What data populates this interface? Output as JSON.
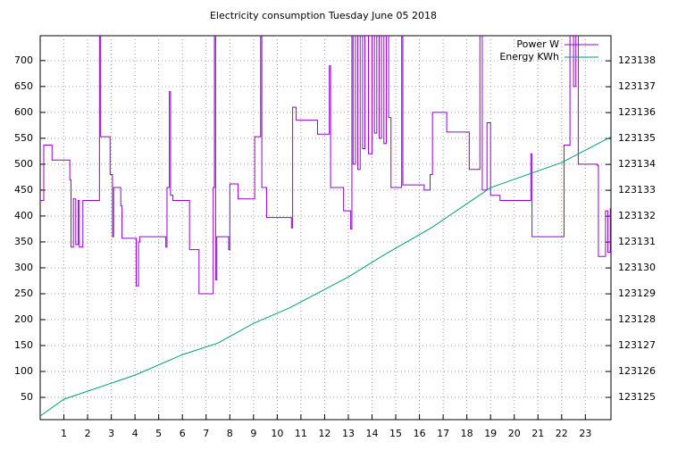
{
  "chart_data": {
    "type": "line",
    "title": "Electricity consumption Tuesday June 05 2018",
    "xlim": [
      0,
      24.08
    ],
    "xticks": [
      1,
      2,
      3,
      4,
      5,
      6,
      7,
      8,
      9,
      10,
      11,
      12,
      13,
      14,
      15,
      16,
      17,
      18,
      19,
      20,
      21,
      22,
      23
    ],
    "ylim": [
      7,
      748
    ],
    "yticks": [
      50,
      100,
      150,
      200,
      250,
      300,
      350,
      400,
      450,
      500,
      550,
      600,
      650,
      700
    ],
    "y2lim": [
      123124.14,
      123138.97
    ],
    "y2ticks": [
      123125,
      123126,
      123127,
      123128,
      123129,
      123130,
      123131,
      123132,
      123133,
      123134,
      123135,
      123136,
      123137,
      123138
    ],
    "grid": true,
    "legend": "top-right",
    "series": [
      {
        "name": "Power W",
        "color": "#9400d3",
        "step": true,
        "x": [
          0,
          0.15,
          0.5,
          1.25,
          1.3,
          1.4,
          1.5,
          1.6,
          1.65,
          1.8,
          2.5,
          2.55,
          2.95,
          3.05,
          3.1,
          3.4,
          3.45,
          4.0,
          4.05,
          4.15,
          4.2,
          5.3,
          5.35,
          5.45,
          5.5,
          5.6,
          6.3,
          6.7,
          7.3,
          7.35,
          7.4,
          7.45,
          7.95,
          8.0,
          8.35,
          9.05,
          9.3,
          9.35,
          9.55,
          10.6,
          10.65,
          10.8,
          11.7,
          12.2,
          12.25,
          12.8,
          13.1,
          13.15,
          13.2,
          13.3,
          13.4,
          13.5,
          13.6,
          13.7,
          13.85,
          14.0,
          14.1,
          14.2,
          14.3,
          14.4,
          14.5,
          14.6,
          14.7,
          14.8,
          15.25,
          15.3,
          16.2,
          16.45,
          16.55,
          17.15,
          18.1,
          18.55,
          18.65,
          18.85,
          19.0,
          19.4,
          20.7,
          20.75,
          22.1,
          22.35,
          22.5,
          22.6,
          22.7,
          23.5,
          23.55,
          23.85,
          23.95,
          24.05
        ],
        "values": [
          430,
          537,
          508,
          470,
          340,
          433,
          345,
          430,
          340,
          430,
          760,
          553,
          480,
          360,
          455,
          420,
          357,
          357,
          265,
          350,
          360,
          340,
          455,
          640,
          440,
          430,
          335,
          250,
          455,
          760,
          277,
          360,
          335,
          462,
          433,
          553,
          760,
          455,
          397,
          377,
          610,
          585,
          558,
          690,
          455,
          410,
          375,
          760,
          500,
          760,
          490,
          760,
          530,
          760,
          520,
          760,
          560,
          760,
          550,
          760,
          540,
          760,
          590,
          455,
          760,
          460,
          450,
          480,
          600,
          562,
          490,
          760,
          450,
          580,
          440,
          430,
          520,
          360,
          537,
          760,
          650,
          760,
          500,
          498,
          322,
          410,
          330,
          415
        ]
      },
      {
        "name": "Energy KWh",
        "color": "#009e73",
        "axis": "y2",
        "x": [
          0,
          1,
          2,
          4,
          6,
          7.5,
          9,
          10.5,
          13,
          14.5,
          16.5,
          19,
          22,
          24.05
        ],
        "values": [
          123124.28,
          123124.93,
          123125.24,
          123125.86,
          123126.65,
          123127.1,
          123127.86,
          123128.45,
          123129.65,
          123130.5,
          123131.55,
          123133.1,
          123134.07,
          123135.05
        ]
      }
    ]
  }
}
